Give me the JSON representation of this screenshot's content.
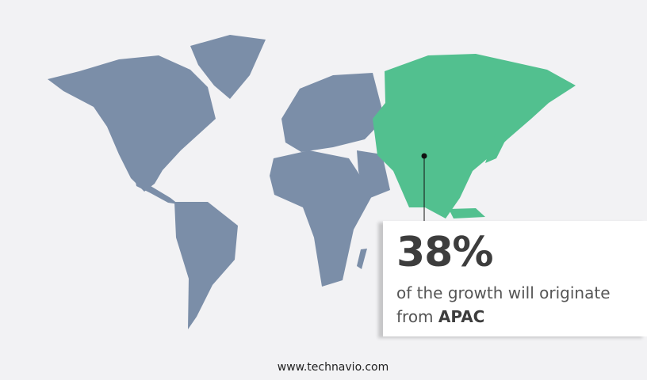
{
  "colors": {
    "background": "#f2f2f4",
    "land": "#7b8ea8",
    "highlight": "#52c08f",
    "text": "#3d3d3d"
  },
  "highlight_region": "APAC",
  "callout": {
    "percentage": "38%",
    "text": "of the growth will originate",
    "from_label": "from",
    "region": "APAC"
  },
  "footer": {
    "website": "www.technavio.com"
  }
}
